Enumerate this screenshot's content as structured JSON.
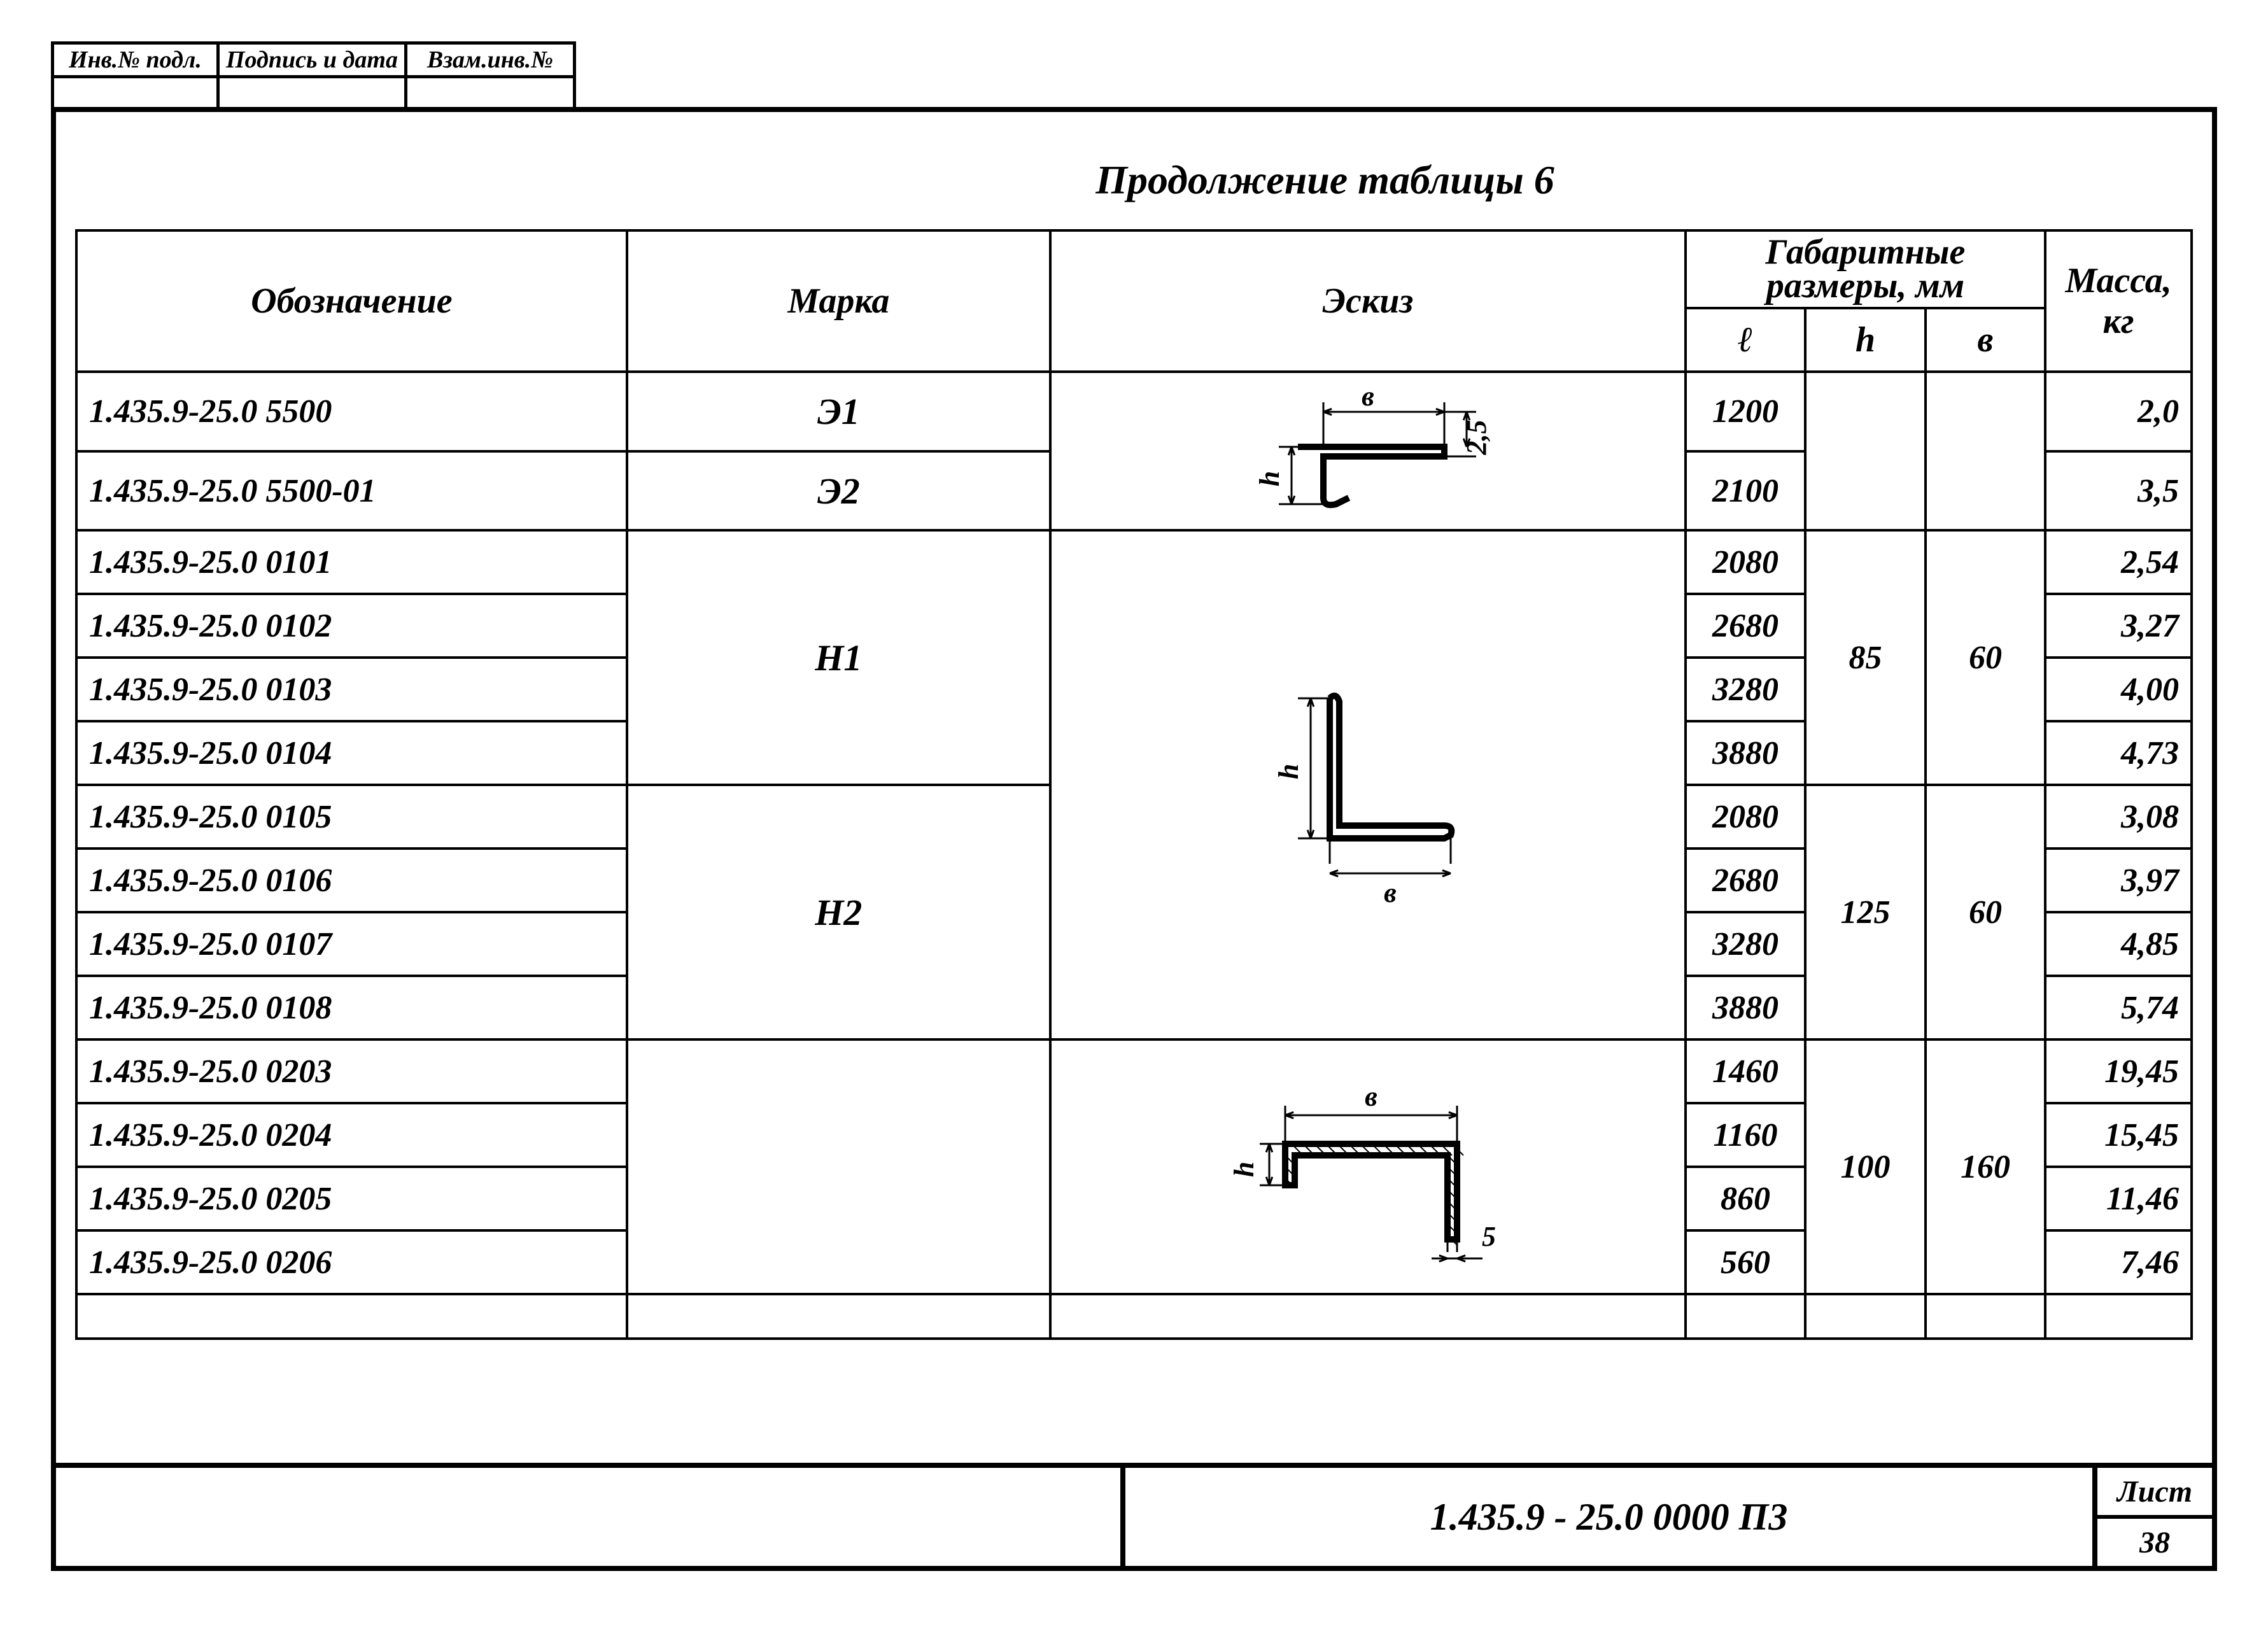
{
  "stamp": {
    "col1_label": "Инв.№ подл.",
    "col2_label": "Подпись и дата",
    "col3_label": "Взам.инв.№"
  },
  "continuation": "Продолжение   таблицы   6",
  "headers": {
    "designation": "Обозначение",
    "mark": "Марка",
    "sketch": "Эскиз",
    "dims_line1": "Габаритные",
    "dims_line2": "размеры,   мм",
    "l": "ℓ",
    "h": "h",
    "b": "в",
    "mass": "Масса, кг"
  },
  "groups": [
    {
      "sketch": "s1",
      "mark_spans": [
        {
          "mark": "Э1",
          "rows": 1
        },
        {
          "mark": "Э2",
          "rows": 1
        }
      ],
      "hb_spans": [
        {
          "h": "",
          "b": "",
          "rows": 2
        }
      ],
      "rows": [
        {
          "des": "1.435.9-25.0  5500",
          "l": "1200",
          "m": "2,0"
        },
        {
          "des": "1.435.9-25.0 5500-01",
          "l": "2100",
          "m": "3,5"
        }
      ]
    },
    {
      "sketch": "s2",
      "mark_spans": [
        {
          "mark": "Н1",
          "rows": 4
        },
        {
          "mark": "Н2",
          "rows": 4
        }
      ],
      "hb_spans": [
        {
          "h": "85",
          "b": "60",
          "rows": 4
        },
        {
          "h": "125",
          "b": "60",
          "rows": 4
        }
      ],
      "rows": [
        {
          "des": "1.435.9-25.0  0101",
          "l": "2080",
          "m": "2,54"
        },
        {
          "des": "1.435.9-25.0  0102",
          "l": "2680",
          "m": "3,27"
        },
        {
          "des": "1.435.9-25.0  0103",
          "l": "3280",
          "m": "4,00"
        },
        {
          "des": "1.435.9-25.0  0104",
          "l": "3880",
          "m": "4,73"
        },
        {
          "des": "1.435.9-25.0  0105",
          "l": "2080",
          "m": "3,08"
        },
        {
          "des": "1.435.9-25.0  0106",
          "l": "2680",
          "m": "3,97"
        },
        {
          "des": "1.435.9-25.0  0107",
          "l": "3280",
          "m": "4,85"
        },
        {
          "des": "1.435.9-25.0  0108",
          "l": "3880",
          "m": "5,74"
        }
      ]
    },
    {
      "sketch": "s3",
      "mark_spans": [
        {
          "mark": "",
          "rows": 4
        }
      ],
      "hb_spans": [
        {
          "h": "100",
          "b": "160",
          "rows": 4
        }
      ],
      "rows": [
        {
          "des": "1.435.9-25.0  0203",
          "l": "1460",
          "m": "19,45"
        },
        {
          "des": "1.435.9-25.0  0204",
          "l": "1160",
          "m": "15,45"
        },
        {
          "des": "1.435.9-25.0  0205",
          "l": "860",
          "m": "11,46"
        },
        {
          "des": "1.435.9-25.0  0206",
          "l": "560",
          "m": "7,46"
        }
      ]
    }
  ],
  "sketches": {
    "s1": {
      "dim_b": "в",
      "dim_h": "h",
      "dim_t": "2,5"
    },
    "s2": {
      "dim_b": "в",
      "dim_h": "h"
    },
    "s3": {
      "dim_b": "в",
      "dim_h": "h",
      "dim_t": "5"
    }
  },
  "footer": {
    "doc": "1.435.9 - 25.0   0000 П3",
    "sheet_label": "Лист",
    "sheet_no": "38"
  },
  "style": {
    "line": "#000000",
    "lw_thick": 10,
    "lw_thin": 3,
    "font": "italic 44px 'Segoe Script','Comic Sans MS',cursive"
  }
}
